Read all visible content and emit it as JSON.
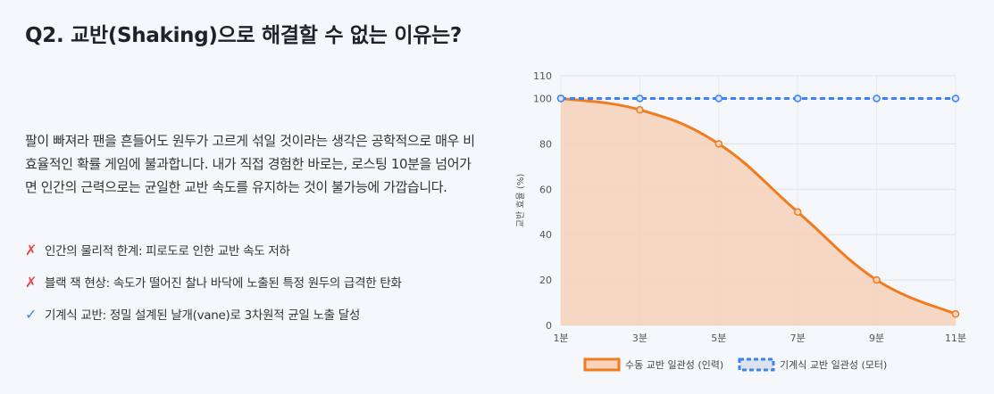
{
  "header": {
    "title": "Q2. 교반(Shaking)으로 해결할 수 없는 이유는?"
  },
  "body": {
    "paragraph": "팔이 빠져라 팬을 흔들어도 원두가 고르게 섞일 것이라는 생각은 공학적으로 매우 비효율적인 확률 게임에 불과합니다. 내가 직접 경험한 바로는, 로스팅 10분을 넘어가면 인간의 근력으로는 균일한 교반 속도를 유지하는 것이 불가능에 가깝습니다."
  },
  "list": [
    {
      "icon": "cross-icon",
      "mark": "✗",
      "text": "인간의 물리적 한계: 피로도로 인한 교반 속도 저하"
    },
    {
      "icon": "cross-icon",
      "mark": "✗",
      "text": "블랙 잭 현상: 속도가 떨어진 찰나 바닥에 노출된 특정 원두의 급격한 탄화"
    },
    {
      "icon": "check-icon",
      "mark": "✓",
      "text": "기계식 교반: 정밀 설계된 날개(vane)로 3차원적 균일 노출 달성"
    }
  ],
  "colors": {
    "manual": "#f07c1e",
    "manual_fill": "#f5d3bd",
    "machine": "#3b82f6",
    "cross": "#e5484d",
    "check": "#3b82f6"
  },
  "chart_data": {
    "type": "line",
    "categories": [
      "1분",
      "3분",
      "5분",
      "7분",
      "9분",
      "11분"
    ],
    "series": [
      {
        "name": "수동 교반 일관성 (인력)",
        "values": [
          100,
          95,
          80,
          50,
          20,
          5
        ],
        "fill": true,
        "style": "solid"
      },
      {
        "name": "기계식 교반 일관성 (모터)",
        "values": [
          100,
          100,
          100,
          100,
          100,
          100
        ],
        "fill": false,
        "style": "dashed"
      }
    ],
    "ylabel": "교반 효율 (%)",
    "xlabel": "",
    "ylim": [
      0,
      110
    ],
    "yticks": [
      0,
      20,
      40,
      60,
      80,
      100,
      110
    ],
    "grid": true,
    "legend": "bottom"
  }
}
